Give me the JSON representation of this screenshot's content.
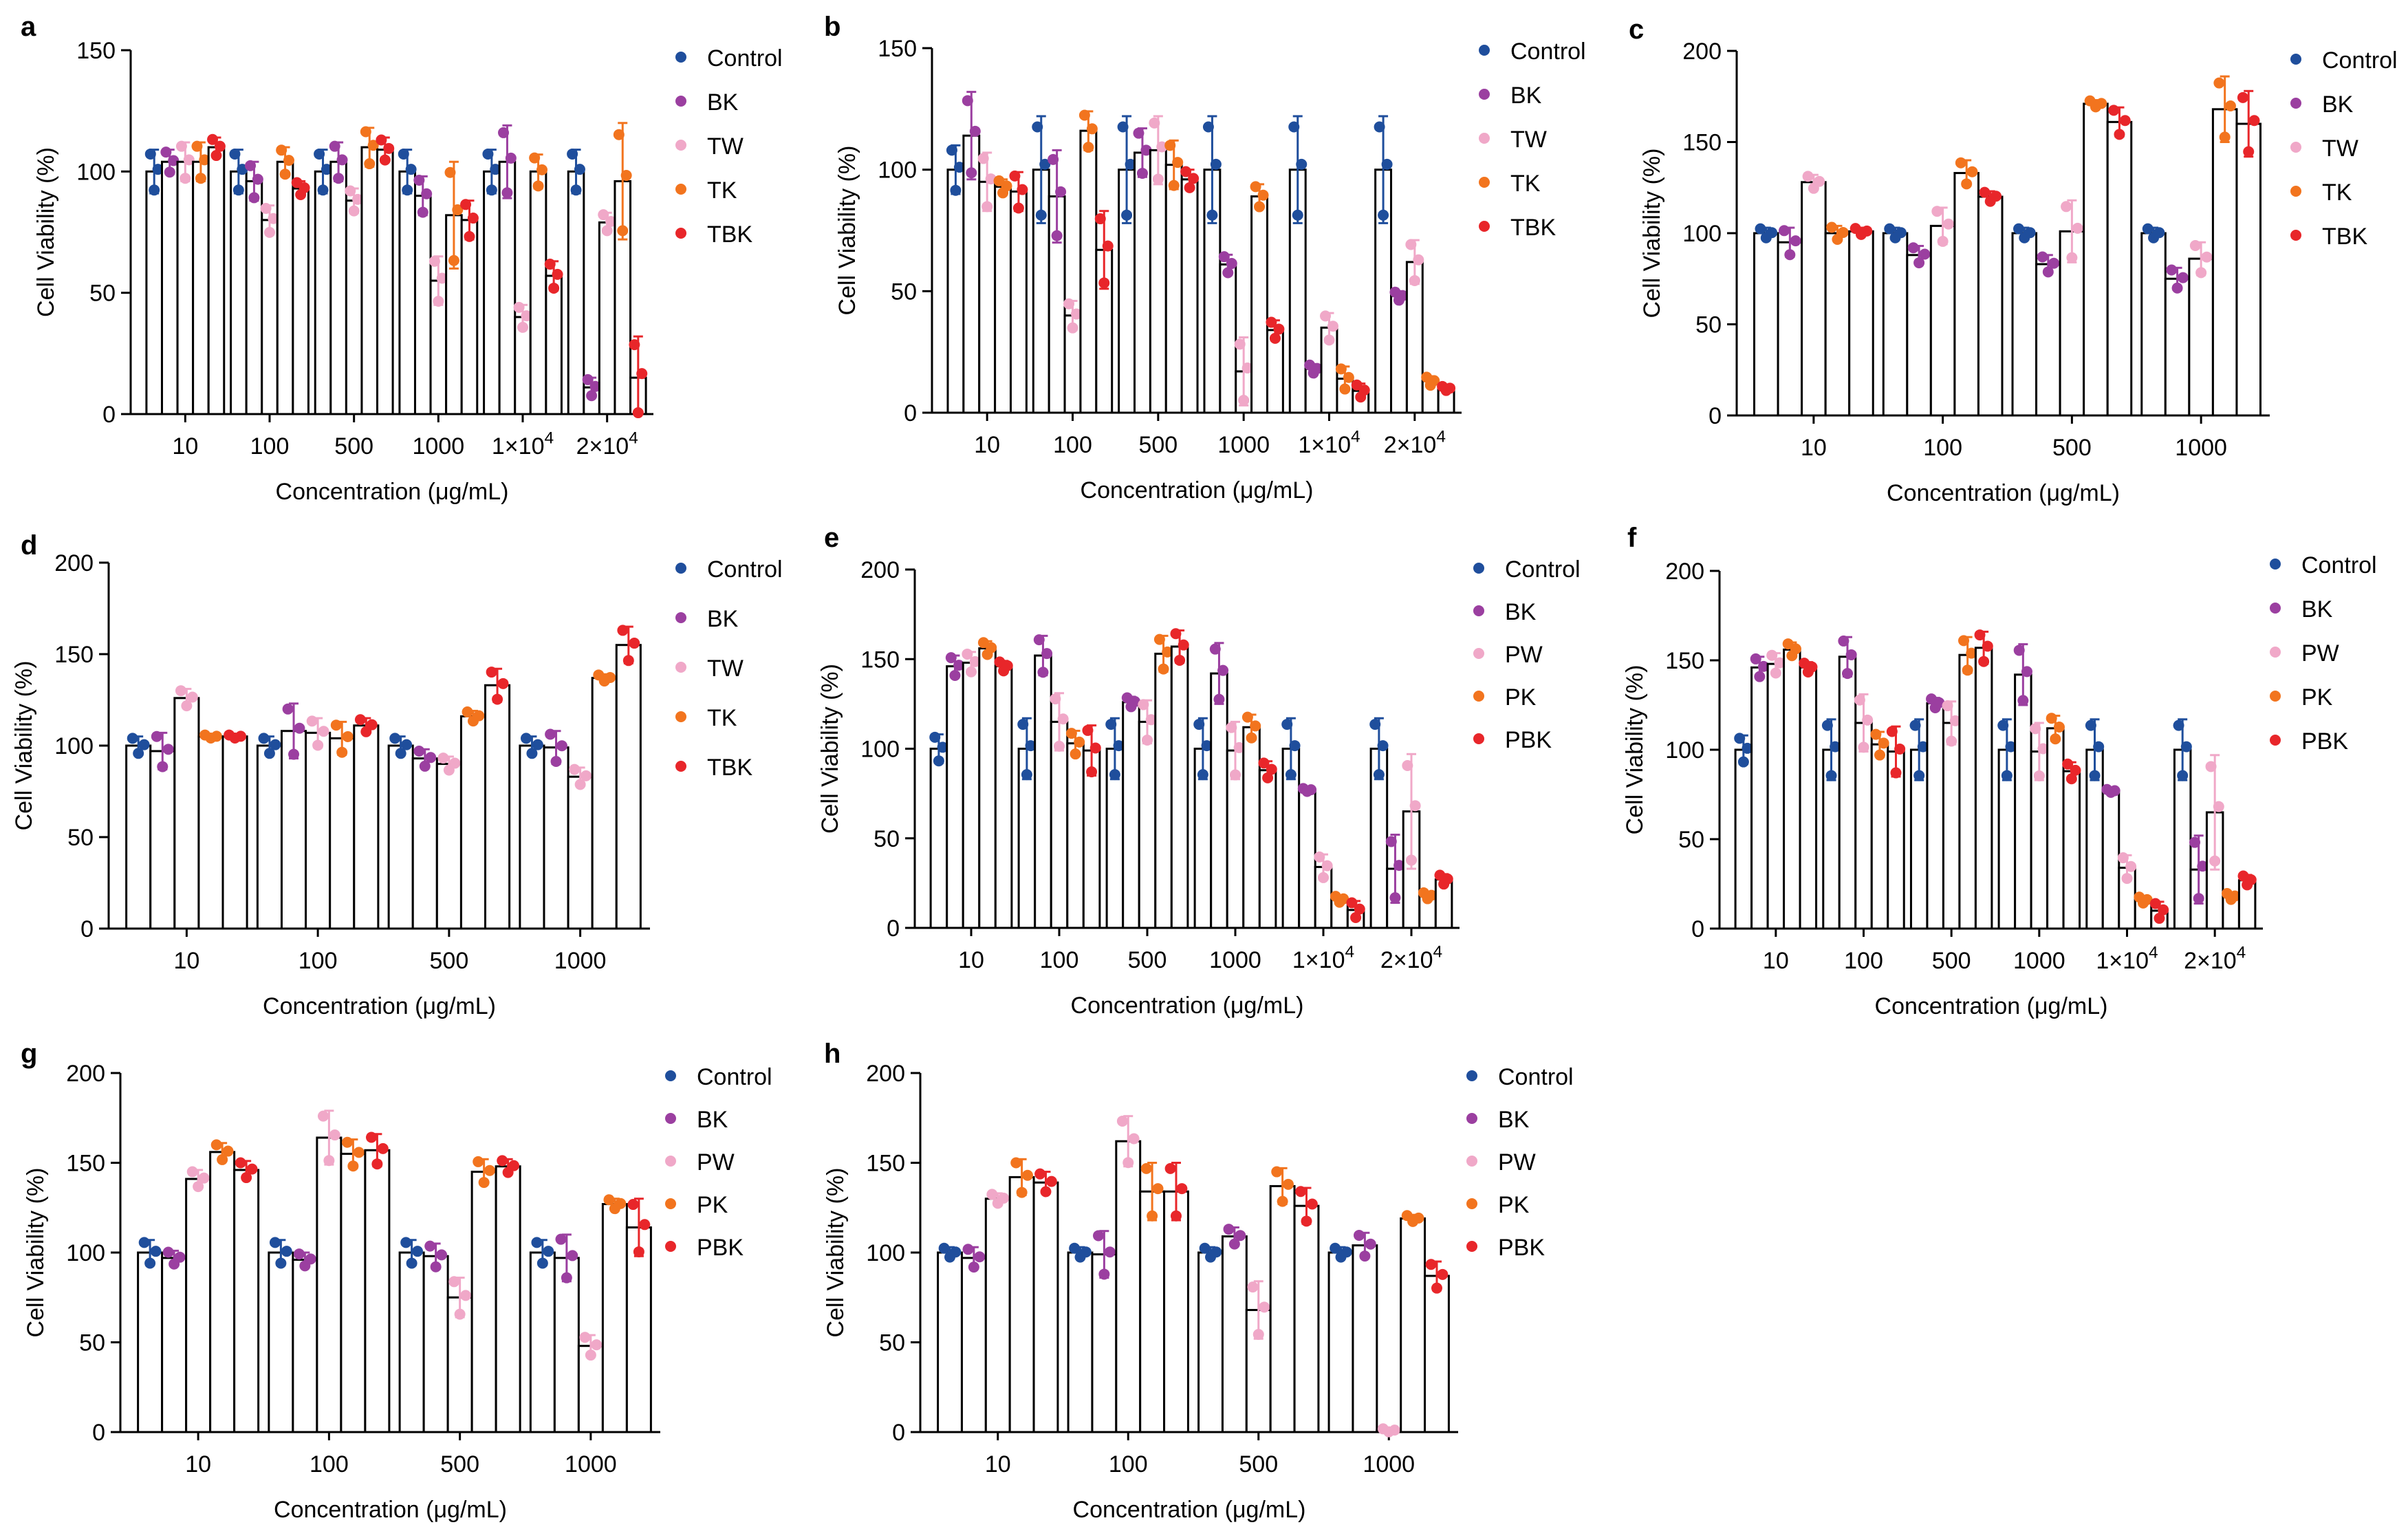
{
  "groups": {
    "TW_set": [
      {
        "name": "Control",
        "color": "#1f4e9c"
      },
      {
        "name": "BK",
        "color": "#9b3fa0"
      },
      {
        "name": "TW",
        "color": "#f0a8c8"
      },
      {
        "name": "TK",
        "color": "#f2741e"
      },
      {
        "name": "TBK",
        "color": "#e8262a"
      }
    ],
    "PW_set": [
      {
        "name": "Control",
        "color": "#1f4e9c"
      },
      {
        "name": "BK",
        "color": "#9b3fa0"
      },
      {
        "name": "PW",
        "color": "#f0a8c8"
      },
      {
        "name": "PK",
        "color": "#f2741e"
      },
      {
        "name": "PBK",
        "color": "#e8262a"
      }
    ]
  },
  "chart_data": [
    {
      "panel": "a",
      "type": "bar",
      "legend_set": "TW_set",
      "xlabel": "Concentration (μg/mL)",
      "ylabel": "Cell Viability (%)",
      "ylim": [
        0,
        150
      ],
      "yticks": [
        0,
        50,
        100,
        150
      ],
      "categories": [
        "10",
        "100",
        "500",
        "1000",
        "1×10^4",
        "2×10^4"
      ],
      "series": [
        {
          "name": "Control",
          "values": [
            100,
            100,
            100,
            100,
            100,
            100
          ],
          "err": [
            9,
            9,
            9,
            9,
            9,
            9
          ]
        },
        {
          "name": "BK",
          "values": [
            104,
            96,
            104,
            90,
            104,
            11
          ],
          "err": [
            5,
            8,
            8,
            8,
            15,
            4
          ]
        },
        {
          "name": "TW",
          "values": [
            104,
            80,
            88,
            55,
            40,
            79
          ],
          "err": [
            8,
            6,
            5,
            10,
            5,
            4
          ]
        },
        {
          "name": "TK",
          "values": [
            104,
            104,
            110,
            82,
            100,
            96
          ],
          "err": [
            8,
            6,
            8,
            22,
            7,
            24
          ]
        },
        {
          "name": "TBK",
          "values": [
            110,
            93,
            109,
            80,
            57,
            15
          ],
          "err": [
            4,
            3,
            5,
            8,
            6,
            17
          ]
        }
      ]
    },
    {
      "panel": "b",
      "type": "bar",
      "legend_set": "TW_set",
      "xlabel": "Concentration (μg/mL)",
      "ylabel": "Cell Viability (%)",
      "ylim": [
        0,
        150
      ],
      "yticks": [
        0,
        50,
        100,
        150
      ],
      "categories": [
        "10",
        "100",
        "500",
        "1000",
        "1×10^4",
        "2×10^4"
      ],
      "series": [
        {
          "name": "Control",
          "values": [
            100,
            100,
            100,
            100,
            100,
            100
          ],
          "err": [
            10,
            22,
            22,
            22,
            22,
            22
          ]
        },
        {
          "name": "BK",
          "values": [
            114,
            89,
            107,
            61,
            18,
            48
          ],
          "err": [
            18,
            19,
            10,
            4,
            2,
            2
          ]
        },
        {
          "name": "TW",
          "values": [
            95,
            40,
            108,
            17,
            35,
            62
          ],
          "err": [
            12,
            6,
            14,
            14,
            6,
            9
          ]
        },
        {
          "name": "TK",
          "values": [
            93,
            116,
            102,
            89,
            14,
            13
          ],
          "err": [
            3,
            8,
            10,
            5,
            5,
            2
          ]
        },
        {
          "name": "TBK",
          "values": [
            91,
            67,
            96,
            34,
            9,
            10
          ],
          "err": [
            8,
            16,
            4,
            4,
            3,
            1
          ]
        }
      ]
    },
    {
      "panel": "c",
      "type": "bar",
      "legend_set": "TW_set",
      "xlabel": "Concentration (μg/mL)",
      "ylabel": "Cell Viability (%)",
      "ylim": [
        0,
        200
      ],
      "yticks": [
        0,
        50,
        100,
        150,
        200
      ],
      "categories": [
        "10",
        "100",
        "500",
        "1000"
      ],
      "series": [
        {
          "name": "Control",
          "values": [
            100,
            100,
            100,
            100
          ],
          "err": [
            3,
            3,
            3,
            3
          ]
        },
        {
          "name": "BK",
          "values": [
            95,
            88,
            83,
            75
          ],
          "err": [
            8,
            5,
            5,
            6
          ]
        },
        {
          "name": "TW",
          "values": [
            128,
            104,
            101,
            86
          ],
          "err": [
            4,
            10,
            17,
            9
          ]
        },
        {
          "name": "TK",
          "values": [
            100,
            133,
            171,
            168
          ],
          "err": [
            4,
            7,
            2,
            18
          ]
        },
        {
          "name": "TBK",
          "values": [
            101,
            120,
            161,
            160
          ],
          "err": [
            2,
            3,
            8,
            18
          ]
        }
      ]
    },
    {
      "panel": "d",
      "type": "bar",
      "legend_set": "TW_set",
      "xlabel": "Concentration (μg/mL)",
      "ylabel": "Cell Viability (%)",
      "ylim": [
        0,
        200
      ],
      "yticks": [
        0,
        50,
        100,
        150,
        200
      ],
      "categories": [
        "10",
        "100",
        "500",
        "1000"
      ],
      "series": [
        {
          "name": "Control",
          "values": [
            100,
            100,
            100,
            100
          ],
          "err": [
            5,
            5,
            5,
            5
          ]
        },
        {
          "name": "BK",
          "values": [
            97,
            108,
            93,
            99
          ],
          "err": [
            10,
            15,
            5,
            9
          ]
        },
        {
          "name": "TW",
          "values": [
            126,
            107,
            90,
            83
          ],
          "err": [
            5,
            8,
            4,
            5
          ]
        },
        {
          "name": "TK",
          "values": [
            105,
            104,
            116,
            137
          ],
          "err": [
            1,
            9,
            3,
            2
          ]
        },
        {
          "name": "TBK",
          "values": [
            105,
            111,
            133,
            155
          ],
          "err": [
            1,
            4,
            9,
            10
          ]
        }
      ]
    },
    {
      "panel": "e",
      "type": "bar",
      "legend_set": "PW_set",
      "xlabel": "Concentration (μg/mL)",
      "ylabel": "Cell Viability (%)",
      "ylim": [
        0,
        200
      ],
      "yticks": [
        0,
        50,
        100,
        150,
        200
      ],
      "categories": [
        "10",
        "100",
        "500",
        "1000",
        "1×10^4",
        "2×10^4"
      ],
      "series": [
        {
          "name": "Control",
          "values": [
            100,
            100,
            100,
            100,
            100,
            100
          ],
          "err": [
            8,
            17,
            17,
            17,
            17,
            17
          ]
        },
        {
          "name": "BK",
          "values": [
            146,
            152,
            126,
            142,
            77,
            33
          ],
          "err": [
            6,
            11,
            3,
            17,
            1,
            19
          ]
        },
        {
          "name": "PW",
          "values": [
            148,
            115,
            115,
            99,
            34,
            65
          ],
          "err": [
            6,
            16,
            12,
            16,
            7,
            32
          ]
        },
        {
          "name": "PK",
          "values": [
            156,
            103,
            153,
            112,
            16,
            18
          ],
          "err": [
            4,
            7,
            10,
            7,
            2,
            2
          ]
        },
        {
          "name": "PBK",
          "values": [
            146,
            99,
            157,
            88,
            10,
            27
          ],
          "err": [
            3,
            14,
            9,
            5,
            5,
            3
          ]
        }
      ]
    },
    {
      "panel": "f",
      "type": "bar",
      "legend_set": "PW_set",
      "xlabel": "Concentration (μg/mL)",
      "ylabel": "Cell Viability (%)",
      "ylim": [
        0,
        200
      ],
      "yticks": [
        0,
        50,
        100,
        150,
        200
      ],
      "categories": [
        "10",
        "100",
        "500",
        "1000",
        "1×10^4",
        "2×10^4"
      ],
      "series": [
        {
          "name": "Control",
          "values": [
            100,
            100,
            100,
            100,
            100,
            100
          ],
          "err": [
            8,
            17,
            17,
            17,
            17,
            17
          ]
        },
        {
          "name": "BK",
          "values": [
            146,
            152,
            126,
            142,
            77,
            33
          ],
          "err": [
            6,
            11,
            3,
            17,
            1,
            19
          ]
        },
        {
          "name": "PW",
          "values": [
            148,
            115,
            115,
            99,
            34,
            65
          ],
          "err": [
            6,
            16,
            12,
            16,
            7,
            32
          ]
        },
        {
          "name": "PK",
          "values": [
            156,
            103,
            153,
            112,
            16,
            18
          ],
          "err": [
            4,
            7,
            10,
            7,
            2,
            2
          ]
        },
        {
          "name": "PBK",
          "values": [
            146,
            99,
            157,
            88,
            10,
            27
          ],
          "err": [
            3,
            14,
            9,
            5,
            5,
            3
          ]
        }
      ]
    },
    {
      "panel": "g",
      "type": "bar",
      "legend_set": "PW_set",
      "xlabel": "Concentration (μg/mL)",
      "ylabel": "Cell Viability (%)",
      "ylim": [
        0,
        200
      ],
      "yticks": [
        0,
        50,
        100,
        150,
        200
      ],
      "categories": [
        "10",
        "100",
        "500",
        "1000"
      ],
      "series": [
        {
          "name": "Control",
          "values": [
            100,
            100,
            100,
            100
          ],
          "err": [
            7,
            7,
            7,
            7
          ]
        },
        {
          "name": "BK",
          "values": [
            97,
            96,
            98,
            97
          ],
          "err": [
            4,
            4,
            7,
            13
          ]
        },
        {
          "name": "PW",
          "values": [
            141,
            164,
            75,
            48
          ],
          "err": [
            5,
            15,
            11,
            6
          ]
        },
        {
          "name": "PK",
          "values": [
            156,
            155,
            145,
            127
          ],
          "err": [
            5,
            8,
            7,
            3
          ]
        },
        {
          "name": "PBK",
          "values": [
            146,
            157,
            148,
            114
          ],
          "err": [
            5,
            9,
            4,
            16
          ]
        }
      ]
    },
    {
      "panel": "h",
      "type": "bar",
      "legend_set": "PW_set",
      "xlabel": "Concentration (μg/mL)",
      "ylabel": "Cell Viability (%)",
      "ylim": [
        0,
        200
      ],
      "yticks": [
        0,
        50,
        100,
        150,
        200
      ],
      "categories": [
        "10",
        "100",
        "500",
        "1000"
      ],
      "series": [
        {
          "name": "Control",
          "values": [
            100,
            100,
            100,
            100
          ],
          "err": [
            3,
            3,
            3,
            3
          ]
        },
        {
          "name": "BK",
          "values": [
            97,
            99,
            109,
            104
          ],
          "err": [
            6,
            13,
            5,
            7
          ]
        },
        {
          "name": "PW",
          "values": [
            130,
            162,
            68,
            1
          ],
          "err": [
            3,
            14,
            16,
            1
          ]
        },
        {
          "name": "PK",
          "values": [
            142,
            134,
            137,
            119
          ],
          "err": [
            10,
            16,
            10,
            2
          ]
        },
        {
          "name": "PBK",
          "values": [
            139,
            134,
            126,
            87
          ],
          "err": [
            6,
            16,
            10,
            8
          ]
        }
      ]
    }
  ]
}
